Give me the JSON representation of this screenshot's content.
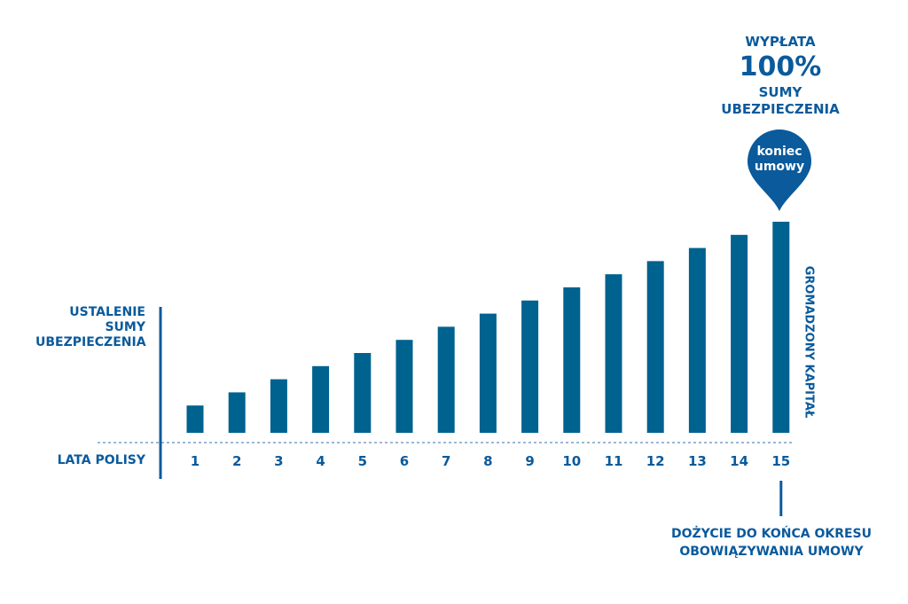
{
  "chart_data": {
    "type": "bar",
    "categories": [
      "1",
      "2",
      "3",
      "4",
      "5",
      "6",
      "7",
      "8",
      "9",
      "10",
      "11",
      "12",
      "13",
      "14",
      "15"
    ],
    "values": [
      1,
      2,
      3,
      4,
      5,
      6,
      7,
      8,
      9,
      10,
      11,
      12,
      13,
      14,
      15
    ],
    "ylim": [
      0,
      15
    ],
    "xlabel": "LATA POLISY",
    "ylabel": "GROMADZONY KAPITAŁ",
    "grid": false
  },
  "annotations": {
    "start_lines": [
      "USTALENIE",
      "SUMY",
      "UBEZPIECZENIA"
    ],
    "payout_top": "WYPŁATA",
    "payout_percent": "100%",
    "payout_bottom_lines": [
      "SUMY",
      "UBEZPIECZENIA"
    ],
    "pin_lines": [
      "koniec",
      "umowy"
    ],
    "end_lines": [
      "DOŻYCIE DO KOŃCA OKRESU",
      "OBOWIĄZYWANIA UMOWY"
    ]
  },
  "colors": {
    "bar": "#00628f",
    "text": "#0a5a9c",
    "pin": "#0a5a9c",
    "axis": "#0a5a9c",
    "dashed_line": "#3a6fa8"
  }
}
